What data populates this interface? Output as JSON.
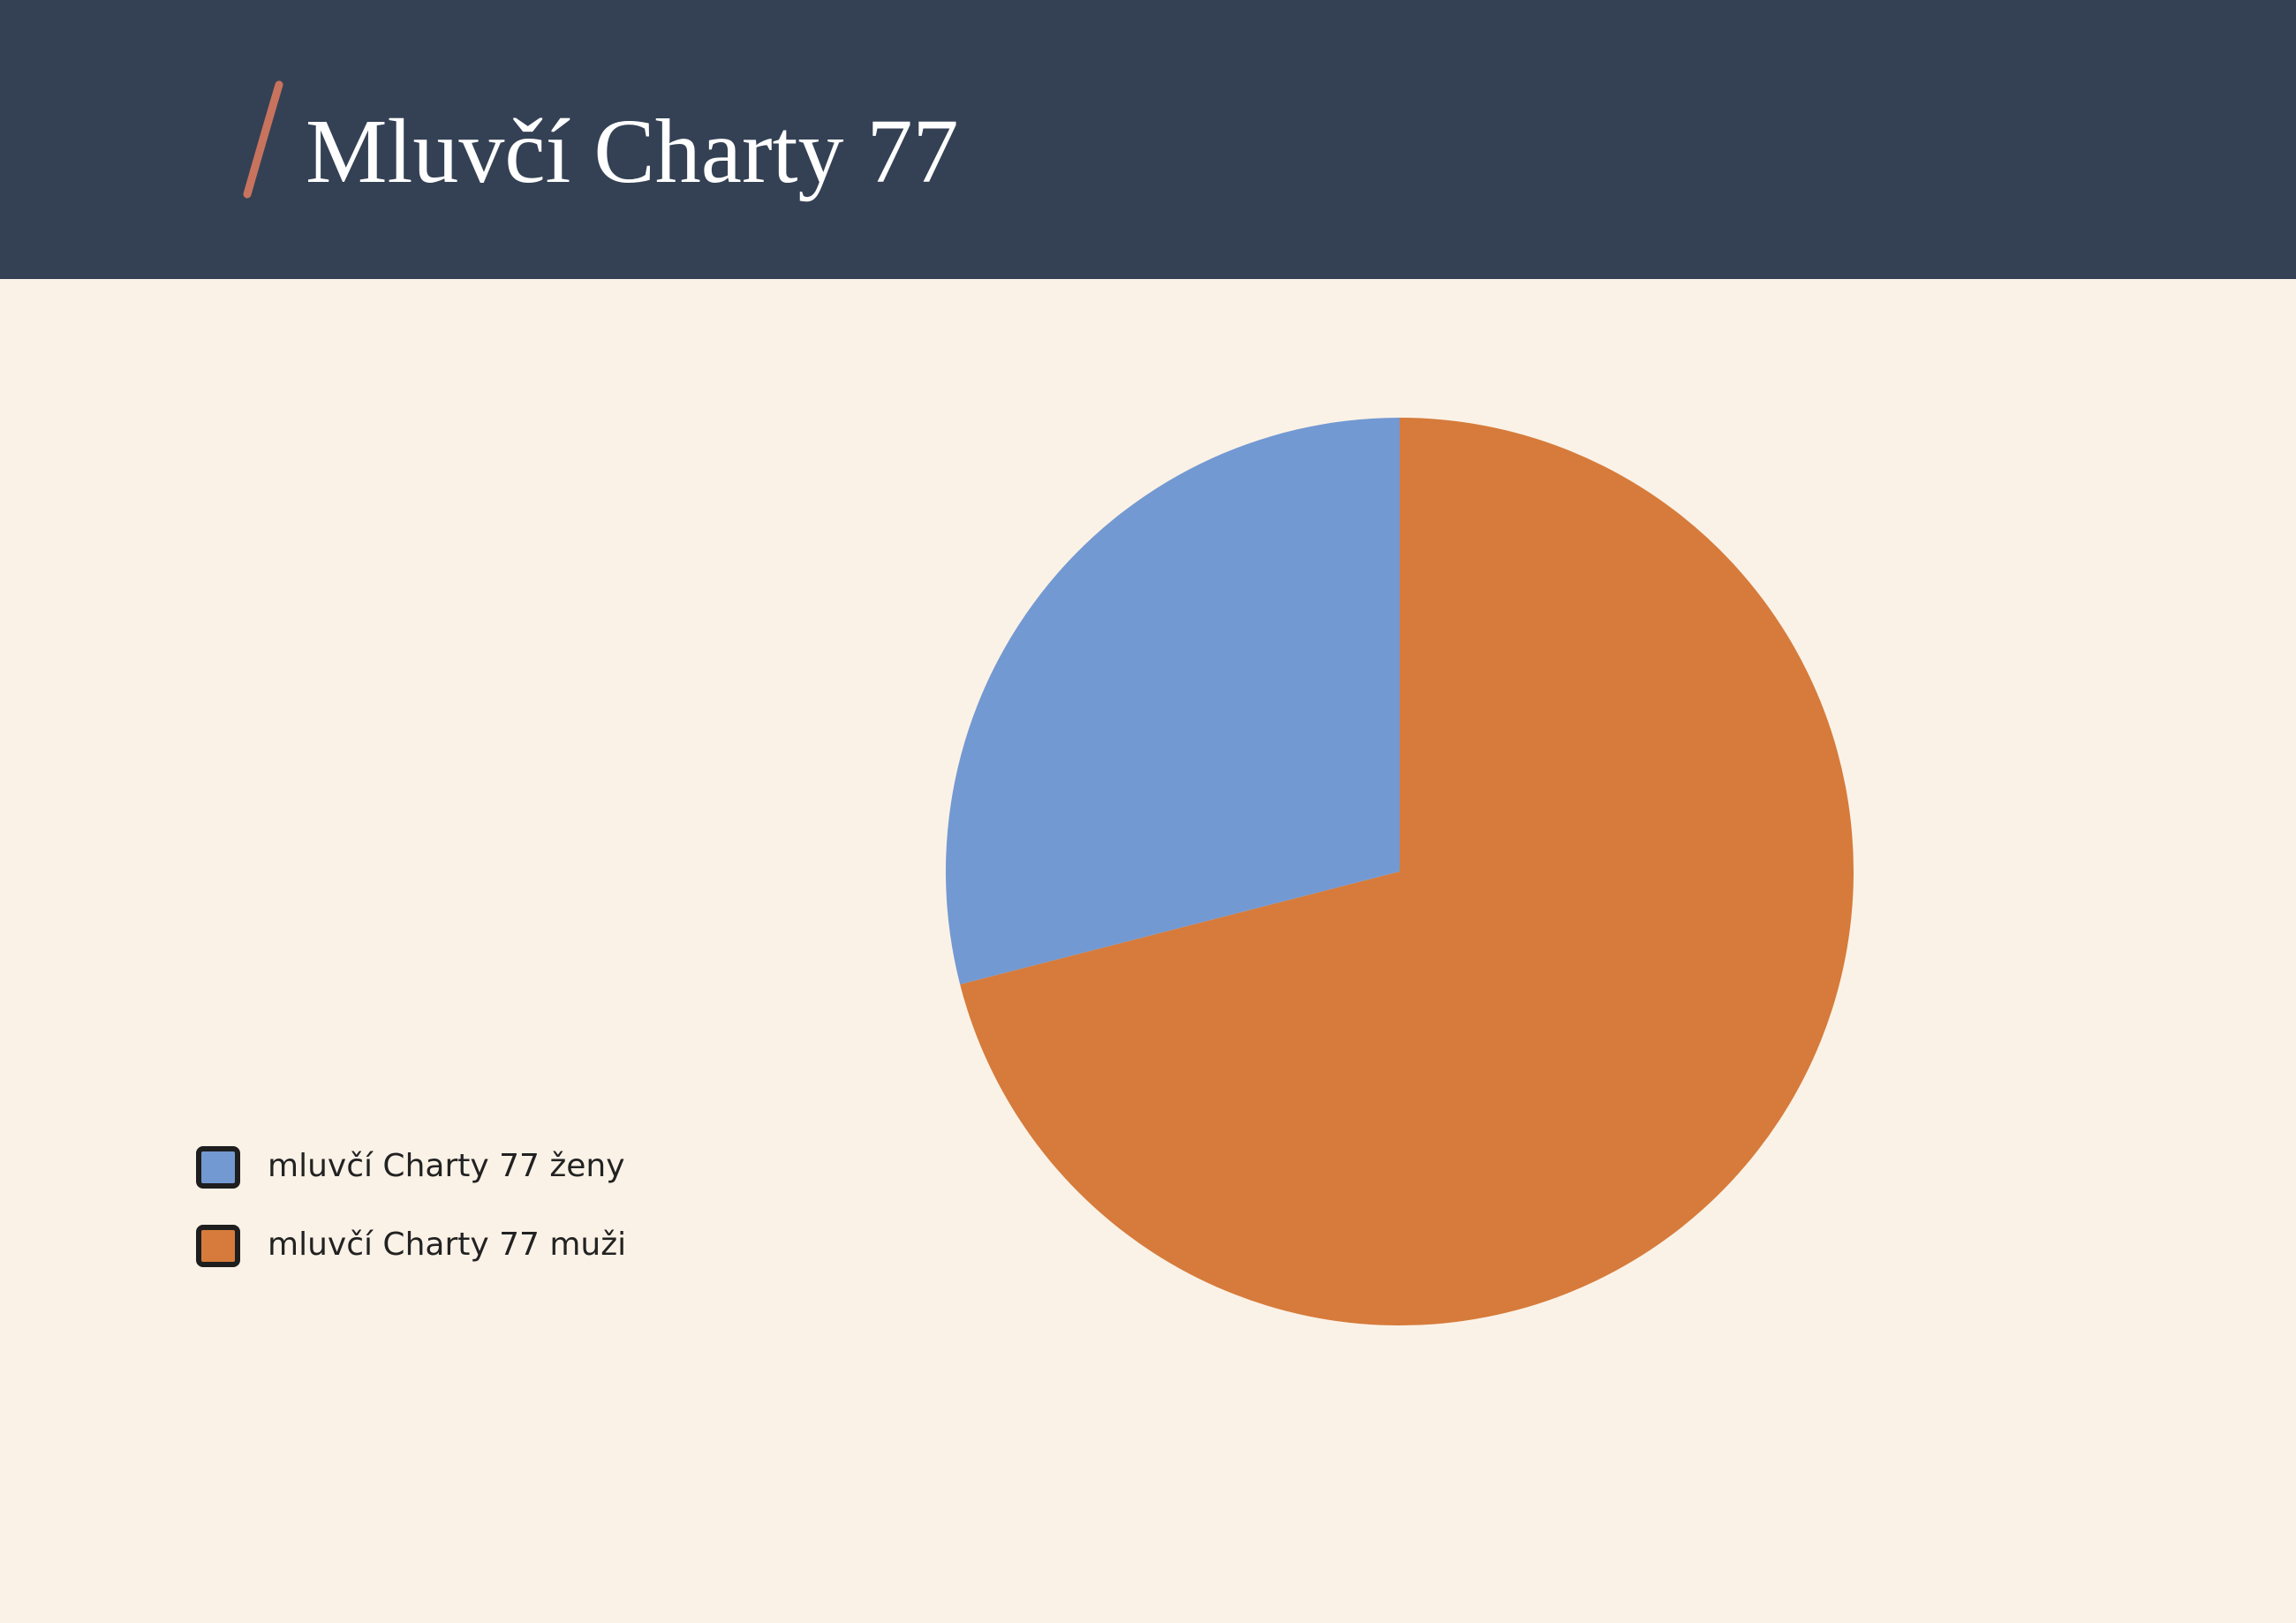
{
  "chart_data": {
    "type": "pie",
    "title": "Mluvčí Charty 77",
    "categories": [
      "mluvčí Charty 77 ženy",
      "mluvčí Charty 77 muži"
    ],
    "values": [
      29,
      71
    ],
    "colors": [
      "#7399d2",
      "#d67b3b"
    ]
  }
}
